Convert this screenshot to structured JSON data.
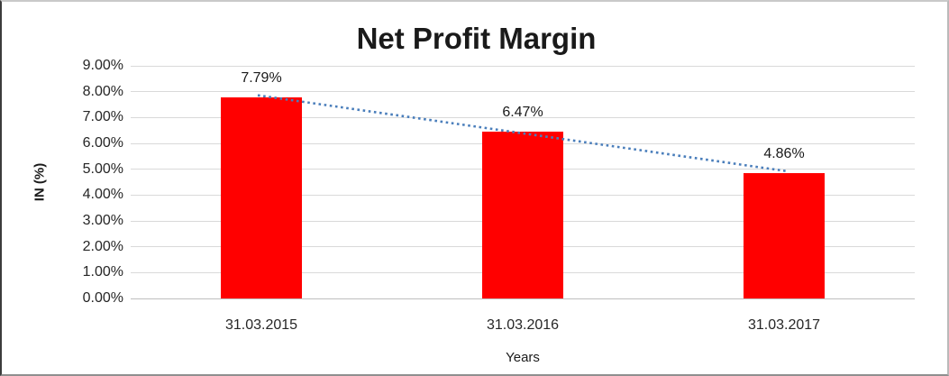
{
  "chart_data": {
    "type": "bar",
    "title": "Net Profit Margin",
    "xlabel": "Years",
    "ylabel": "IN (%)",
    "categories": [
      "31.03.2015",
      "31.03.2016",
      "31.03.2017"
    ],
    "values": [
      7.79,
      6.47,
      4.86
    ],
    "value_labels": [
      "7.79%",
      "6.47%",
      "4.86%"
    ],
    "ylim": [
      0,
      9
    ],
    "ytick_step": 1,
    "ytick_labels": [
      "0.00%",
      "1.00%",
      "2.00%",
      "3.00%",
      "4.00%",
      "5.00%",
      "6.00%",
      "7.00%",
      "8.00%",
      "9.00%"
    ],
    "grid": true,
    "legend": "none",
    "bar_color": "#ff0000",
    "gridline_color": "#d9d9d9",
    "axis_line_color": "#bfbfbf",
    "text_color": "#262626",
    "trendline": {
      "type": "linear",
      "style": "dotted",
      "color": "#4a7ebb"
    }
  }
}
